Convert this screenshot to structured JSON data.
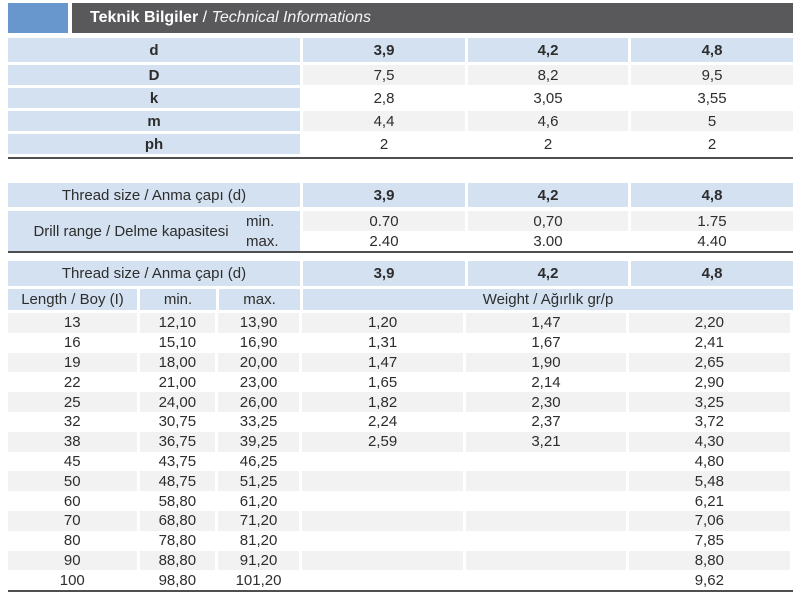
{
  "header": {
    "title_tr": "Teknik Bilgiler",
    "separator": " / ",
    "title_en": "Technical Informations"
  },
  "table1": {
    "rows": [
      {
        "label": "d",
        "values": [
          "3,9",
          "4,2",
          "4,8"
        ],
        "header": true
      },
      {
        "label": "D",
        "values": [
          "7,5",
          "8,2",
          "9,5"
        ],
        "header": false
      },
      {
        "label": "k",
        "values": [
          "2,8",
          "3,05",
          "3,55"
        ],
        "header": false
      },
      {
        "label": "m",
        "values": [
          "4,4",
          "4,6",
          "5"
        ],
        "header": false
      },
      {
        "label": "ph",
        "values": [
          "2",
          "2",
          "2"
        ],
        "header": false
      }
    ]
  },
  "table2": {
    "header_label": "Thread size / Anma çapı (d)",
    "header_values": [
      "3,9",
      "4,2",
      "4,8"
    ],
    "row_label": "Drill range / Delme kapasitesi",
    "sub_rows": [
      {
        "label": "min.",
        "values": [
          "0.70",
          "0,70",
          "1.75"
        ]
      },
      {
        "label": "max.",
        "values": [
          "2.40",
          "3.00",
          "4.40"
        ]
      }
    ]
  },
  "table3": {
    "header_label": "Thread size / Anma çapı (d)",
    "header_values": [
      "3,9",
      "4,2",
      "4,8"
    ],
    "col_headers": [
      "Length / Boy (I)",
      "min.",
      "max."
    ],
    "weight_header": "Weight / Ağırlık gr/p",
    "rows": [
      {
        "length": "13",
        "min": "12,10",
        "max": "13,90",
        "weights": [
          "1,20",
          "1,47",
          "2,20"
        ]
      },
      {
        "length": "16",
        "min": "15,10",
        "max": "16,90",
        "weights": [
          "1,31",
          "1,67",
          "2,41"
        ]
      },
      {
        "length": "19",
        "min": "18,00",
        "max": "20,00",
        "weights": [
          "1,47",
          "1,90",
          "2,65"
        ]
      },
      {
        "length": "22",
        "min": "21,00",
        "max": "23,00",
        "weights": [
          "1,65",
          "2,14",
          "2,90"
        ]
      },
      {
        "length": "25",
        "min": "24,00",
        "max": "26,00",
        "weights": [
          "1,82",
          "2,30",
          "3,25"
        ]
      },
      {
        "length": "32",
        "min": "30,75",
        "max": "33,25",
        "weights": [
          "2,24",
          "2,37",
          "3,72"
        ]
      },
      {
        "length": "38",
        "min": "36,75",
        "max": "39,25",
        "weights": [
          "2,59",
          "3,21",
          "4,30"
        ]
      },
      {
        "length": "45",
        "min": "43,75",
        "max": "46,25",
        "weights": [
          "",
          "",
          "4,80"
        ]
      },
      {
        "length": "50",
        "min": "48,75",
        "max": "51,25",
        "weights": [
          "",
          "",
          "5,48"
        ]
      },
      {
        "length": "60",
        "min": "58,80",
        "max": "61,20",
        "weights": [
          "",
          "",
          "6,21"
        ]
      },
      {
        "length": "70",
        "min": "68,80",
        "max": "71,20",
        "weights": [
          "",
          "",
          "7,06"
        ]
      },
      {
        "length": "80",
        "min": "78,80",
        "max": "81,20",
        "weights": [
          "",
          "",
          "7,85"
        ]
      },
      {
        "length": "90",
        "min": "88,80",
        "max": "91,20",
        "weights": [
          "",
          "",
          "8,80"
        ]
      },
      {
        "length": "100",
        "min": "98,80",
        "max": "101,20",
        "weights": [
          "",
          "",
          "9,62"
        ]
      }
    ]
  },
  "colors": {
    "accent_blue": "#6897cd",
    "titlebar_gray": "#59595b",
    "cell_blue": "#d4e1f0",
    "band_gray": "#f2f2f2",
    "border_dark": "#4f4f4f"
  }
}
